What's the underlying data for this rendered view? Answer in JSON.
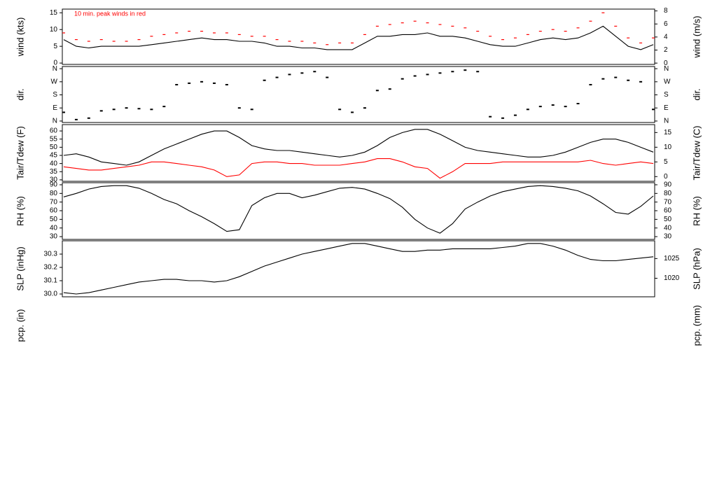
{
  "chart_data": [
    {
      "type": "line",
      "ylabel": "wind (kts)",
      "y2label": "wind (m/s)",
      "annotation": "10 min. peak winds in red",
      "ylim": [
        -0.4,
        16.1
      ],
      "yticks": [
        0,
        5,
        10,
        15
      ],
      "y2lim": [
        -0.2,
        8.28
      ],
      "y2ticks": [
        0,
        2,
        4,
        6,
        8
      ],
      "series": [
        {
          "color": "#000000",
          "marker": "line",
          "values": [
            7,
            5,
            4.5,
            5,
            5,
            5,
            5,
            5.5,
            6,
            6.5,
            7,
            7.5,
            7,
            7,
            6.5,
            6.5,
            6,
            5,
            5,
            4.5,
            4.5,
            4,
            4,
            4,
            6,
            8,
            8,
            8.5,
            8.5,
            9,
            8,
            8,
            7.5,
            6.5,
            5.5,
            5,
            5,
            6,
            7,
            7.5,
            7,
            7.5,
            9,
            11,
            8,
            5,
            4,
            5.5
          ]
        },
        {
          "color": "#ff0000",
          "marker": "dash",
          "values": [
            9,
            7,
            6.5,
            7,
            6.5,
            6.5,
            7,
            8,
            8.5,
            9,
            9.5,
            9.5,
            9,
            9,
            8.5,
            8,
            8,
            7,
            6.5,
            6.5,
            6,
            5.5,
            6,
            6,
            8.5,
            11,
            11.5,
            12,
            12.5,
            12,
            11.5,
            11,
            10.5,
            9.5,
            8,
            7,
            7.5,
            8.5,
            9.5,
            10,
            9.5,
            10.5,
            12.5,
            15,
            11,
            7.5,
            6,
            7.5
          ]
        }
      ]
    },
    {
      "type": "scatter",
      "ylabel": "dir.",
      "y2label": "dir.",
      "ylim": [
        -10,
        375
      ],
      "yticks": [
        {
          "value": 0,
          "label": "N"
        },
        {
          "value": 90,
          "label": "E"
        },
        {
          "value": 180,
          "label": "S"
        },
        {
          "value": 270,
          "label": "W"
        },
        {
          "value": 360,
          "label": "N"
        }
      ],
      "y2lim": [
        -10,
        375
      ],
      "y2ticks": [
        {
          "value": 0,
          "label": "N"
        },
        {
          "value": 90,
          "label": "E"
        },
        {
          "value": 180,
          "label": "S"
        },
        {
          "value": 270,
          "label": "W"
        },
        {
          "value": 360,
          "label": "N"
        }
      ],
      "series": [
        {
          "color": "#000000",
          "marker": "dash",
          "values": [
            60,
            10,
            20,
            70,
            80,
            90,
            85,
            80,
            100,
            250,
            260,
            270,
            260,
            250,
            90,
            80,
            280,
            300,
            320,
            330,
            340,
            300,
            80,
            60,
            90,
            210,
            220,
            290,
            310,
            320,
            330,
            340,
            350,
            340,
            30,
            20,
            40,
            80,
            100,
            110,
            100,
            120,
            250,
            290,
            300,
            280,
            270,
            80
          ]
        }
      ]
    },
    {
      "type": "line",
      "ylabel": "Tair/Tdew (F)",
      "y2label": "Tair/Tdew (C)",
      "ylim": [
        29.1,
        63.9
      ],
      "yticks": [
        30,
        35,
        40,
        45,
        50,
        55,
        60
      ],
      "y2lim": [
        -1.6,
        17.7
      ],
      "y2ticks": [
        0,
        5,
        10,
        15
      ],
      "series": [
        {
          "color": "#000000",
          "marker": "line",
          "values": [
            45,
            46,
            44,
            41,
            40,
            39,
            41,
            45,
            49,
            52,
            55,
            58,
            60,
            60,
            56,
            51,
            49,
            48,
            48,
            47,
            46,
            45,
            44,
            45,
            47,
            51,
            56,
            59,
            61,
            61,
            58,
            54,
            50,
            48,
            47,
            46,
            45,
            44,
            44,
            45,
            47,
            50,
            53,
            55,
            55,
            53,
            50,
            47
          ]
        },
        {
          "color": "#ff0000",
          "marker": "line",
          "values": [
            38,
            37,
            36,
            36,
            37,
            38,
            39,
            41,
            41,
            40,
            39,
            38,
            36,
            32,
            33,
            40,
            41,
            41,
            40,
            40,
            39,
            39,
            39,
            40,
            41,
            43,
            43,
            41,
            38,
            37,
            31,
            35,
            40,
            40,
            40,
            41,
            41,
            41,
            41,
            41,
            41,
            41,
            42,
            40,
            39,
            40,
            41,
            40
          ]
        }
      ]
    },
    {
      "type": "line",
      "ylabel": "RH (%)",
      "y2label": "RH (%)",
      "ylim": [
        26.8,
        92.4
      ],
      "yticks": [
        30,
        40,
        50,
        60,
        70,
        80,
        90
      ],
      "y2lim": [
        26.8,
        92.4
      ],
      "y2ticks": [
        30,
        40,
        50,
        60,
        70,
        80,
        90
      ],
      "series": [
        {
          "color": "#000000",
          "marker": "line",
          "values": [
            76,
            80,
            85,
            88,
            89,
            89,
            86,
            80,
            73,
            68,
            60,
            53,
            45,
            36,
            38,
            66,
            75,
            80,
            80,
            75,
            78,
            82,
            86,
            87,
            85,
            80,
            74,
            64,
            50,
            40,
            34,
            45,
            62,
            70,
            77,
            82,
            85,
            88,
            89,
            88,
            86,
            83,
            77,
            68,
            58,
            56,
            65,
            77
          ]
        }
      ]
    },
    {
      "type": "line",
      "ylabel": "SLP (inHg)",
      "y2label": "SLP (hPa)",
      "ylim": [
        29.979,
        30.4
      ],
      "yticks": [
        {
          "value": 30,
          "label": "30.0"
        },
        30.1,
        30.2,
        30.3
      ],
      "y2lim": [
        1015.3,
        1029.5
      ],
      "y2ticks": [
        1020,
        1025
      ],
      "series": [
        {
          "color": "#000000",
          "marker": "line",
          "values": [
            30.01,
            30.0,
            30.01,
            30.03,
            30.05,
            30.07,
            30.09,
            30.1,
            30.11,
            30.11,
            30.1,
            30.1,
            30.09,
            30.1,
            30.13,
            30.17,
            30.21,
            30.24,
            30.27,
            30.3,
            30.32,
            30.34,
            30.36,
            30.38,
            30.38,
            30.36,
            30.34,
            30.32,
            30.32,
            30.33,
            30.33,
            30.34,
            30.34,
            30.34,
            30.34,
            30.35,
            30.36,
            30.38,
            30.38,
            30.36,
            30.33,
            30.29,
            30.26,
            30.25,
            30.25,
            30.26,
            30.27,
            30.28
          ]
        }
      ]
    },
    {
      "type": "empty",
      "ylabel": "pcp. (in)",
      "y2label": "pcp. (mm)"
    }
  ]
}
